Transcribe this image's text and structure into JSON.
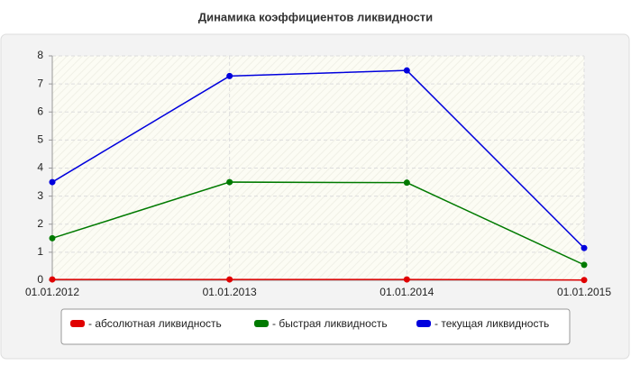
{
  "chart_data": {
    "type": "line",
    "title": "Динамика коэффициентов ликвидности",
    "categories": [
      "01.01.2012",
      "01.01.2013",
      "01.01.2014",
      "01.01.2015"
    ],
    "series": [
      {
        "name": "- абсолютная ликвидность",
        "color": "#e00000",
        "values": [
          0.03,
          0.03,
          0.03,
          0.01
        ]
      },
      {
        "name": "- быстрая ликвидность",
        "color": "#007a00",
        "values": [
          1.5,
          3.5,
          3.48,
          0.55
        ]
      },
      {
        "name": "- текущая ликвидность",
        "color": "#0000dd",
        "values": [
          3.5,
          7.28,
          7.48,
          1.15
        ]
      }
    ],
    "ylim": [
      0,
      8
    ],
    "yticks": [
      0,
      1,
      2,
      3,
      4,
      5,
      6,
      7,
      8
    ],
    "grid": true,
    "legend": "bottom"
  }
}
